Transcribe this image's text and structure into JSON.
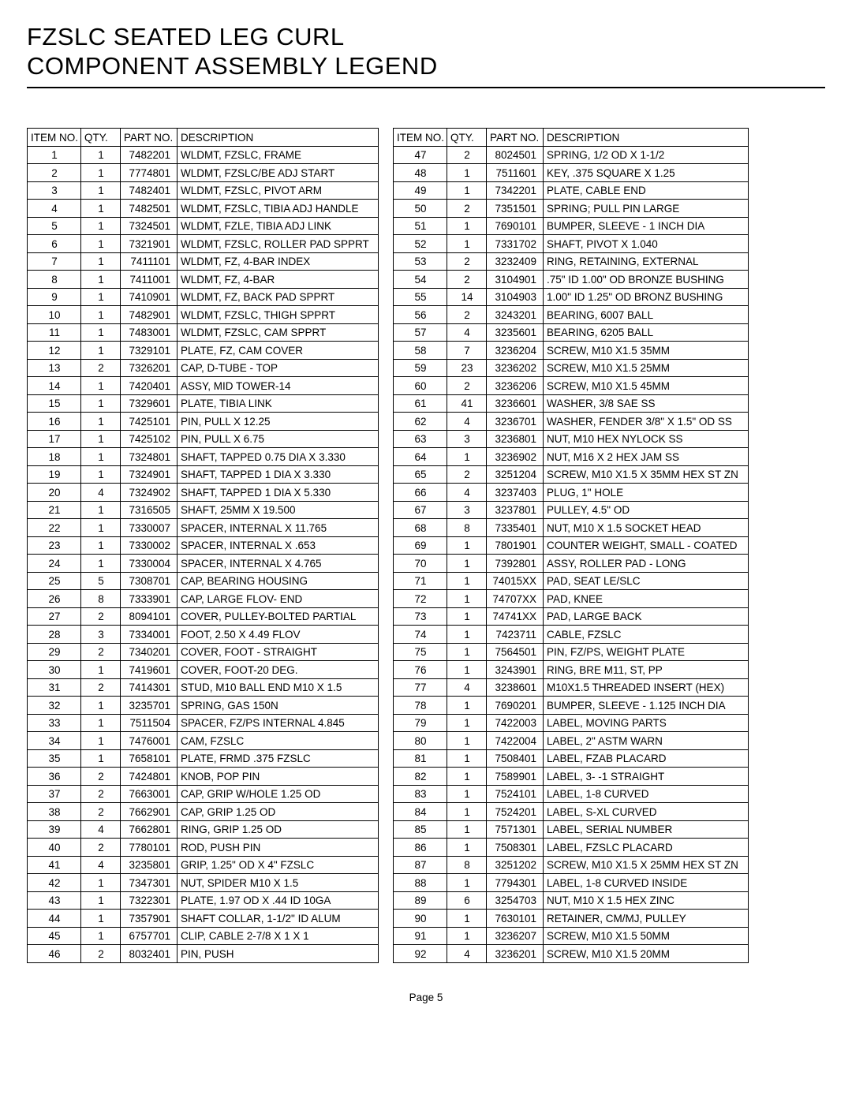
{
  "title_line1": "FZSLC SEATED LEG CURL",
  "title_line2": "COMPONENT ASSEMBLY LEGEND",
  "page_label": "Page 5",
  "headers": {
    "item": "ITEM NO.",
    "qty": "QTY.",
    "part": "PART NO.",
    "desc": "DESCRIPTION"
  },
  "left_rows": [
    {
      "item": "1",
      "qty": "1",
      "part": "7482201",
      "desc": "WLDMT, FZSLC, FRAME"
    },
    {
      "item": "2",
      "qty": "1",
      "part": "7774801",
      "desc": "WLDMT, FZSLC/BE ADJ START"
    },
    {
      "item": "3",
      "qty": "1",
      "part": "7482401",
      "desc": "WLDMT, FZSLC, PIVOT ARM"
    },
    {
      "item": "4",
      "qty": "1",
      "part": "7482501",
      "desc": "WLDMT, FZSLC, TIBIA ADJ HANDLE"
    },
    {
      "item": "5",
      "qty": "1",
      "part": "7324501",
      "desc": "WLDMT, FZLE, TIBIA ADJ LINK"
    },
    {
      "item": "6",
      "qty": "1",
      "part": "7321901",
      "desc": "WLDMT, FZSLC, ROLLER PAD SPPRT"
    },
    {
      "item": "7",
      "qty": "1",
      "part": "7411101",
      "desc": "WLDMT, FZ, 4-BAR INDEX"
    },
    {
      "item": "8",
      "qty": "1",
      "part": "7411001",
      "desc": "WLDMT, FZ, 4-BAR"
    },
    {
      "item": "9",
      "qty": "1",
      "part": "7410901",
      "desc": "WLDMT, FZ, BACK PAD SPPRT"
    },
    {
      "item": "10",
      "qty": "1",
      "part": "7482901",
      "desc": "WLDMT, FZSLC, THIGH SPPRT"
    },
    {
      "item": "11",
      "qty": "1",
      "part": "7483001",
      "desc": "WLDMT, FZSLC, CAM SPPRT"
    },
    {
      "item": "12",
      "qty": "1",
      "part": "7329101",
      "desc": "PLATE, FZ, CAM COVER"
    },
    {
      "item": "13",
      "qty": "2",
      "part": "7326201",
      "desc": "CAP, D-TUBE - TOP"
    },
    {
      "item": "14",
      "qty": "1",
      "part": "7420401",
      "desc": "ASSY, MID TOWER-14"
    },
    {
      "item": "15",
      "qty": "1",
      "part": "7329601",
      "desc": "PLATE, TIBIA LINK"
    },
    {
      "item": "16",
      "qty": "1",
      "part": "7425101",
      "desc": "PIN, PULL X 12.25"
    },
    {
      "item": "17",
      "qty": "1",
      "part": "7425102",
      "desc": "PIN, PULL X 6.75"
    },
    {
      "item": "18",
      "qty": "1",
      "part": "7324801",
      "desc": "SHAFT, TAPPED 0.75 DIA X 3.330"
    },
    {
      "item": "19",
      "qty": "1",
      "part": "7324901",
      "desc": "SHAFT, TAPPED 1 DIA X 3.330"
    },
    {
      "item": "20",
      "qty": "4",
      "part": "7324902",
      "desc": "SHAFT, TAPPED 1 DIA X 5.330"
    },
    {
      "item": "21",
      "qty": "1",
      "part": "7316505",
      "desc": "SHAFT, 25MM X 19.500"
    },
    {
      "item": "22",
      "qty": "1",
      "part": "7330007",
      "desc": "SPACER, INTERNAL X 11.765"
    },
    {
      "item": "23",
      "qty": "1",
      "part": "7330002",
      "desc": "SPACER, INTERNAL X .653"
    },
    {
      "item": "24",
      "qty": "1",
      "part": "7330004",
      "desc": "SPACER, INTERNAL X 4.765"
    },
    {
      "item": "25",
      "qty": "5",
      "part": "7308701",
      "desc": "CAP, BEARING HOUSING"
    },
    {
      "item": "26",
      "qty": "8",
      "part": "7333901",
      "desc": "CAP, LARGE FLOV- END"
    },
    {
      "item": "27",
      "qty": "2",
      "part": "8094101",
      "desc": "COVER, PULLEY-BOLTED PARTIAL"
    },
    {
      "item": "28",
      "qty": "3",
      "part": "7334001",
      "desc": "FOOT, 2.50 X 4.49 FLOV"
    },
    {
      "item": "29",
      "qty": "2",
      "part": "7340201",
      "desc": "COVER, FOOT - STRAIGHT"
    },
    {
      "item": "30",
      "qty": "1",
      "part": "7419601",
      "desc": "COVER,  FOOT-20 DEG."
    },
    {
      "item": "31",
      "qty": "2",
      "part": "7414301",
      "desc": "STUD, M10 BALL END M10 X 1.5"
    },
    {
      "item": "32",
      "qty": "1",
      "part": "3235701",
      "desc": "SPRING, GAS 150N"
    },
    {
      "item": "33",
      "qty": "1",
      "part": "7511504",
      "desc": "SPACER, FZ/PS INTERNAL 4.845"
    },
    {
      "item": "34",
      "qty": "1",
      "part": "7476001",
      "desc": "CAM, FZSLC"
    },
    {
      "item": "35",
      "qty": "1",
      "part": "7658101",
      "desc": "PLATE, FRMD .375 FZSLC"
    },
    {
      "item": "36",
      "qty": "2",
      "part": "7424801",
      "desc": "KNOB, POP PIN"
    },
    {
      "item": "37",
      "qty": "2",
      "part": "7663001",
      "desc": "CAP, GRIP W/HOLE 1.25 OD"
    },
    {
      "item": "38",
      "qty": "2",
      "part": "7662901",
      "desc": "CAP, GRIP 1.25 OD"
    },
    {
      "item": "39",
      "qty": "4",
      "part": "7662801",
      "desc": "RING, GRIP 1.25 OD"
    },
    {
      "item": "40",
      "qty": "2",
      "part": "7780101",
      "desc": "ROD, PUSH PIN"
    },
    {
      "item": "41",
      "qty": "4",
      "part": "3235801",
      "desc": "GRIP, 1.25\" OD X 4\" FZSLC"
    },
    {
      "item": "42",
      "qty": "1",
      "part": "7347301",
      "desc": "NUT, SPIDER M10 X 1.5"
    },
    {
      "item": "43",
      "qty": "1",
      "part": "7322301",
      "desc": "PLATE, 1.97 OD X .44 ID 10GA"
    },
    {
      "item": "44",
      "qty": "1",
      "part": "7357901",
      "desc": "SHAFT COLLAR, 1-1/2\" ID ALUM"
    },
    {
      "item": "45",
      "qty": "1",
      "part": "6757701",
      "desc": "CLIP, CABLE 2-7/8 X 1 X 1"
    },
    {
      "item": "46",
      "qty": "2",
      "part": "8032401",
      "desc": "PIN, PUSH"
    }
  ],
  "right_rows": [
    {
      "item": "47",
      "qty": "2",
      "part": "8024501",
      "desc": "SPRING, 1/2 OD X 1-1/2"
    },
    {
      "item": "48",
      "qty": "1",
      "part": "7511601",
      "desc": "KEY, .375 SQUARE X 1.25"
    },
    {
      "item": "49",
      "qty": "1",
      "part": "7342201",
      "desc": "PLATE, CABLE END"
    },
    {
      "item": "50",
      "qty": "2",
      "part": "7351501",
      "desc": "SPRING; PULL PIN LARGE"
    },
    {
      "item": "51",
      "qty": "1",
      "part": "7690101",
      "desc": "BUMPER, SLEEVE - 1 INCH DIA"
    },
    {
      "item": "52",
      "qty": "1",
      "part": "7331702",
      "desc": "SHAFT, PIVOT X 1.040"
    },
    {
      "item": "53",
      "qty": "2",
      "part": "3232409",
      "desc": "RING, RETAINING, EXTERNAL"
    },
    {
      "item": "54",
      "qty": "2",
      "part": "3104901",
      "desc": ".75\" ID 1.00\" OD BRONZE BUSHING"
    },
    {
      "item": "55",
      "qty": "14",
      "part": "3104903",
      "desc": "1.00\" ID 1.25\" OD BRONZ BUSHING"
    },
    {
      "item": "56",
      "qty": "2",
      "part": "3243201",
      "desc": "BEARING, 6007 BALL"
    },
    {
      "item": "57",
      "qty": "4",
      "part": "3235601",
      "desc": "BEARING, 6205 BALL"
    },
    {
      "item": "58",
      "qty": "7",
      "part": "3236204",
      "desc": "SCREW, M10 X1.5 35MM"
    },
    {
      "item": "59",
      "qty": "23",
      "part": "3236202",
      "desc": "SCREW, M10 X1.5 25MM"
    },
    {
      "item": "60",
      "qty": "2",
      "part": "3236206",
      "desc": "SCREW, M10 X1.5 45MM"
    },
    {
      "item": "61",
      "qty": "41",
      "part": "3236601",
      "desc": "WASHER, 3/8 SAE SS"
    },
    {
      "item": "62",
      "qty": "4",
      "part": "3236701",
      "desc": "WASHER, FENDER 3/8\" X 1.5\" OD SS"
    },
    {
      "item": "63",
      "qty": "3",
      "part": "3236801",
      "desc": "NUT, M10 HEX  NYLOCK SS"
    },
    {
      "item": "64",
      "qty": "1",
      "part": "3236902",
      "desc": "NUT, M16 X 2 HEX JAM SS"
    },
    {
      "item": "65",
      "qty": "2",
      "part": "3251204",
      "desc": "SCREW, M10 X1.5 X 35MM HEX ST ZN"
    },
    {
      "item": "66",
      "qty": "4",
      "part": "3237403",
      "desc": "PLUG,  1\" HOLE"
    },
    {
      "item": "67",
      "qty": "3",
      "part": "3237801",
      "desc": "PULLEY, 4.5\" OD"
    },
    {
      "item": "68",
      "qty": "8",
      "part": "7335401",
      "desc": "NUT, M10 X 1.5 SOCKET HEAD"
    },
    {
      "item": "69",
      "qty": "1",
      "part": "7801901",
      "desc": "COUNTER WEIGHT, SMALL - COATED"
    },
    {
      "item": "70",
      "qty": "1",
      "part": "7392801",
      "desc": "ASSY, ROLLER PAD - LONG"
    },
    {
      "item": "71",
      "qty": "1",
      "part": "74015XX",
      "desc": "PAD,  SEAT LE/SLC"
    },
    {
      "item": "72",
      "qty": "1",
      "part": "74707XX",
      "desc": "PAD,  KNEE"
    },
    {
      "item": "73",
      "qty": "1",
      "part": "74741XX",
      "desc": "PAD,  LARGE BACK"
    },
    {
      "item": "74",
      "qty": "1",
      "part": "7423711",
      "desc": "CABLE, FZSLC"
    },
    {
      "item": "75",
      "qty": "1",
      "part": "7564501",
      "desc": "PIN, FZ/PS, WEIGHT PLATE"
    },
    {
      "item": "76",
      "qty": "1",
      "part": "3243901",
      "desc": "RING, BRE M11, ST, PP"
    },
    {
      "item": "77",
      "qty": "4",
      "part": "3238601",
      "desc": "M10X1.5 THREADED INSERT (HEX)"
    },
    {
      "item": "78",
      "qty": "1",
      "part": "7690201",
      "desc": "BUMPER, SLEEVE - 1.125 INCH DIA"
    },
    {
      "item": "79",
      "qty": "1",
      "part": "7422003",
      "desc": "LABEL, MOVING PARTS"
    },
    {
      "item": "80",
      "qty": "1",
      "part": "7422004",
      "desc": "LABEL, 2\" ASTM WARN"
    },
    {
      "item": "81",
      "qty": "1",
      "part": "7508401",
      "desc": "LABEL, FZAB PLACARD"
    },
    {
      "item": "82",
      "qty": "1",
      "part": "7589901",
      "desc": "LABEL, 3- -1 STRAIGHT"
    },
    {
      "item": "83",
      "qty": "1",
      "part": "7524101",
      "desc": "LABEL, 1-8 CURVED"
    },
    {
      "item": "84",
      "qty": "1",
      "part": "7524201",
      "desc": "LABEL, S-XL CURVED"
    },
    {
      "item": "85",
      "qty": "1",
      "part": "7571301",
      "desc": "LABEL, SERIAL NUMBER"
    },
    {
      "item": "86",
      "qty": "1",
      "part": "7508301",
      "desc": "LABEL, FZSLC PLACARD"
    },
    {
      "item": "87",
      "qty": "8",
      "part": "3251202",
      "desc": "SCREW, M10 X1.5 X 25MM HEX ST ZN"
    },
    {
      "item": "88",
      "qty": "1",
      "part": "7794301",
      "desc": "LABEL, 1-8 CURVED INSIDE"
    },
    {
      "item": "89",
      "qty": "6",
      "part": "3254703",
      "desc": "NUT, M10 X 1.5 HEX ZINC"
    },
    {
      "item": "90",
      "qty": "1",
      "part": "7630101",
      "desc": "RETAINER, CM/MJ, PULLEY"
    },
    {
      "item": "91",
      "qty": "1",
      "part": "3236207",
      "desc": "SCREW, M10 X1.5 50MM"
    },
    {
      "item": "92",
      "qty": "4",
      "part": "3236201",
      "desc": "SCREW, M10 X1.5 20MM"
    }
  ]
}
